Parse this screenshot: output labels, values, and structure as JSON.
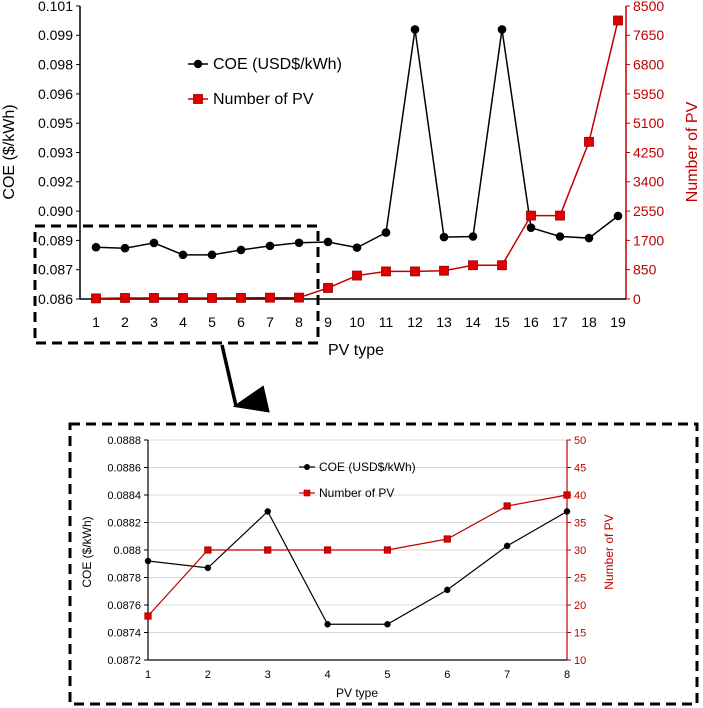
{
  "chart_data": [
    {
      "type": "line",
      "title": "",
      "xlabel": "PV type",
      "ylabel": "COE ($/kWh)",
      "y2label": "Number of PV",
      "categories": [
        "1",
        "2",
        "3",
        "4",
        "5",
        "6",
        "7",
        "8",
        "9",
        "10",
        "11",
        "12",
        "13",
        "14",
        "15",
        "16",
        "17",
        "18",
        "19"
      ],
      "ylim": [
        0.086,
        0.101
      ],
      "yticks": [
        "0.086",
        "0.087",
        "0.089",
        "0.090",
        "0.092",
        "0.093",
        "0.095",
        "0.096",
        "0.098",
        "0.099",
        "0.101"
      ],
      "y2lim": [
        0,
        8500
      ],
      "y2ticks": [
        "0",
        "850",
        "1700",
        "2550",
        "3400",
        "4250",
        "5100",
        "5950",
        "6800",
        "7650",
        "8500"
      ],
      "legend_position": "upper-left",
      "grid": false,
      "series": [
        {
          "name": "COE (USD$/kWh)",
          "axis": "left",
          "color": "#000000",
          "marker": "circle",
          "values": [
            0.08865,
            0.0886,
            0.08887,
            0.08826,
            0.08826,
            0.08851,
            0.08872,
            0.08888,
            0.08892,
            0.08863,
            0.0894,
            0.0998,
            0.08917,
            0.0892,
            0.0998,
            0.08965,
            0.0892,
            0.08912,
            0.09025
          ]
        },
        {
          "name": "Number of PV",
          "axis": "right",
          "color": "#cc0000",
          "marker": "square",
          "values": [
            18,
            30,
            30,
            30,
            30,
            32,
            38,
            40,
            320,
            680,
            800,
            800,
            820,
            980,
            980,
            2420,
            2420,
            4560,
            8080
          ]
        }
      ]
    },
    {
      "type": "line",
      "title": "",
      "xlabel": "PV type",
      "ylabel": "COE ($/kWh)",
      "y2label": "Number of PV",
      "categories": [
        "1",
        "2",
        "3",
        "4",
        "5",
        "6",
        "7",
        "8"
      ],
      "ylim": [
        0.0872,
        0.0888
      ],
      "yticks": [
        "0.0872",
        "0.0874",
        "0.0876",
        "0.0878",
        "0.088",
        "0.0882",
        "0.0884",
        "0.0886",
        "0.0888"
      ],
      "y2lim": [
        10,
        50
      ],
      "y2ticks": [
        "10",
        "15",
        "20",
        "25",
        "30",
        "35",
        "40",
        "45",
        "50"
      ],
      "legend_position": "upper-center",
      "grid": true,
      "series": [
        {
          "name": "COE (USD$/kWh)",
          "axis": "left",
          "color": "#000000",
          "marker": "circle",
          "values": [
            0.08792,
            0.08787,
            0.08828,
            0.08746,
            0.08746,
            0.08771,
            0.08803,
            0.08828
          ]
        },
        {
          "name": "Number of PV",
          "axis": "right",
          "color": "#cc0000",
          "marker": "square",
          "values": [
            18,
            30,
            30,
            30,
            30,
            32,
            38,
            40
          ]
        }
      ]
    }
  ]
}
